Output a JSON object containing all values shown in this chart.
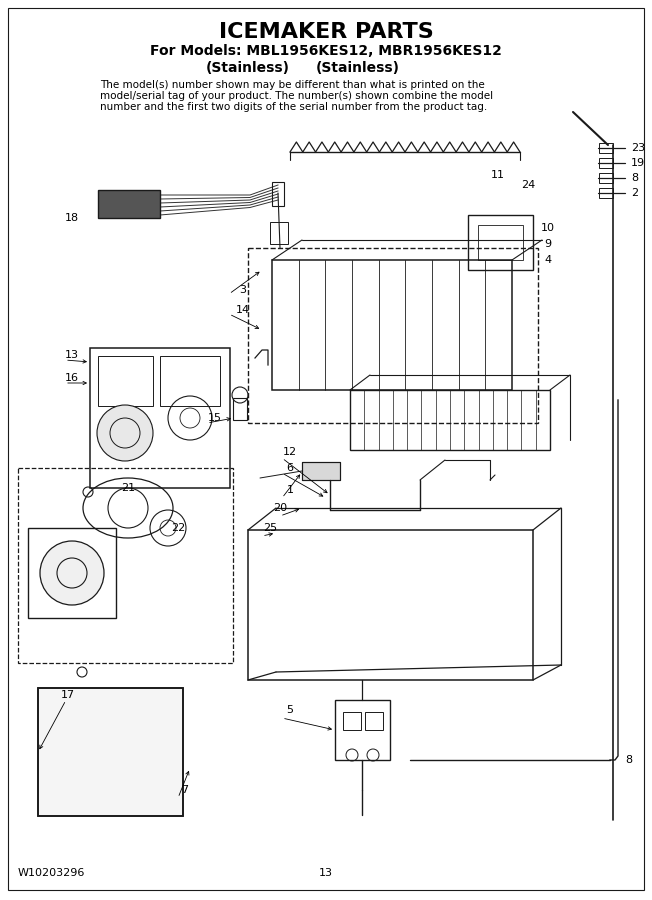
{
  "title": "ICEMAKER PARTS",
  "subtitle_line1": "For Models: MBL1956KES12, MBR1956KES12",
  "subtitle_line2_left": "(Stainless)",
  "subtitle_line2_right": "(Stainless)",
  "disclaimer": "The model(s) number shown may be different than what is printed on the\nmodel/serial tag of your product. The number(s) shown combine the model\nnumber and the first two digits of the serial number from the product tag.",
  "footer_left": "W10203296",
  "footer_center": "13",
  "bg_color": "#ffffff",
  "line_color": "#1a1a1a",
  "title_fontsize": 16,
  "subtitle_fontsize": 10,
  "disclaimer_fontsize": 7.5,
  "label_fontsize": 8,
  "footer_fontsize": 8
}
